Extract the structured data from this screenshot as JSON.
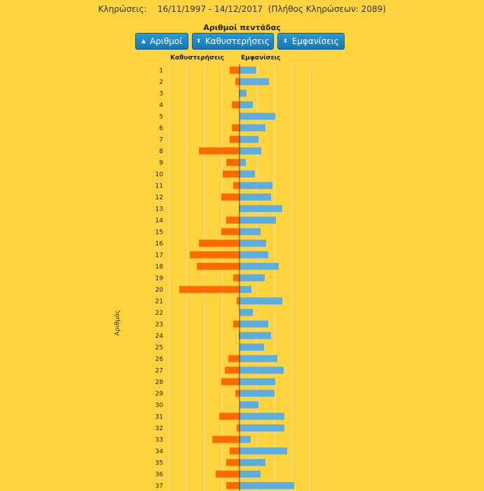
{
  "header": {
    "label": "Κληρώσεις:",
    "date_range": "16/11/1997 - 14/12/2017",
    "count": "(Πλήθος Κληρώσεων: 2089)"
  },
  "buttons": {
    "numbers": "Αριθμοί",
    "delays": "Καθυστερήσεις",
    "appearances": "Εμφανίσεις",
    "numbers_icon": "sort-up-icon",
    "delays_icon": "sort-icon",
    "appearances_icon": "sort-icon"
  },
  "colors": {
    "background": "#ffd33d",
    "delays": "#ff6a00",
    "appearances": "#5aaee0",
    "axis": "#444444",
    "grid": "#e8e0c0"
  },
  "chart_data": {
    "type": "bar",
    "orientation": "horizontal-diverging",
    "title": "Αριθμοί πεντάδας",
    "ylabel": "Αριθμός",
    "left_label": "Καθυστερήσεις",
    "right_label": "Εμφανίσεις",
    "categories": [
      "1",
      "2",
      "3",
      "4",
      "5",
      "6",
      "7",
      "8",
      "9",
      "10",
      "11",
      "12",
      "13",
      "14",
      "15",
      "16",
      "17",
      "18",
      "19",
      "20",
      "21",
      "22",
      "23",
      "24",
      "25",
      "26",
      "27",
      "28",
      "29",
      "30",
      "31",
      "32",
      "33",
      "34",
      "35",
      "36",
      "37"
    ],
    "series": [
      {
        "name": "Καθυστερήσεις",
        "values": [
          14,
          6,
          1,
          11,
          0,
          11,
          14,
          58,
          19,
          24,
          9,
          26,
          1,
          19,
          26,
          58,
          71,
          61,
          9,
          86,
          4,
          0,
          9,
          1,
          0,
          16,
          21,
          26,
          6,
          0,
          29,
          4,
          39,
          14,
          19,
          34,
          19
        ]
      },
      {
        "name": "Εμφανίσεις",
        "values": [
          24,
          42,
          10,
          19,
          51,
          37,
          27,
          31,
          9,
          22,
          47,
          45,
          61,
          52,
          30,
          38,
          41,
          56,
          36,
          17,
          61,
          19,
          41,
          45,
          35,
          54,
          63,
          51,
          50,
          27,
          64,
          64,
          16,
          68,
          37,
          30,
          78
        ]
      }
    ]
  }
}
